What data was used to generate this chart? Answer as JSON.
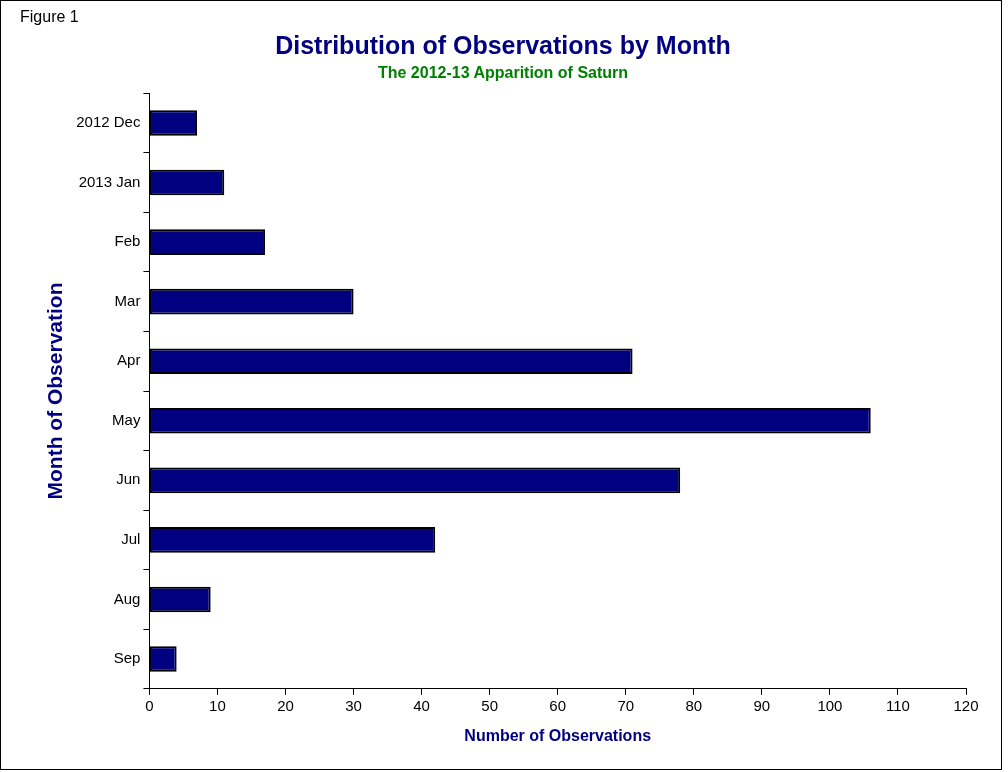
{
  "chart_data": {
    "type": "bar",
    "orientation": "horizontal",
    "title": "Distribution of Observations by Month",
    "subtitle": "The 2012-13 Apparition of Saturn",
    "xlabel": "Number of Observations",
    "ylabel": "Month of Observation",
    "annotations": [
      "Figure 1"
    ],
    "categories": [
      "2012 Dec",
      "2013 Jan",
      "Feb",
      "Mar",
      "Apr",
      "May",
      "Jun",
      "Jul",
      "Aug",
      "Sep"
    ],
    "values": [
      7,
      11,
      17,
      30,
      71,
      106,
      78,
      42,
      9,
      4
    ],
    "color": "#000080",
    "xlim": [
      0,
      120
    ],
    "xticks": [
      0,
      10,
      20,
      30,
      40,
      50,
      60,
      70,
      80,
      90,
      100,
      110,
      120
    ]
  }
}
